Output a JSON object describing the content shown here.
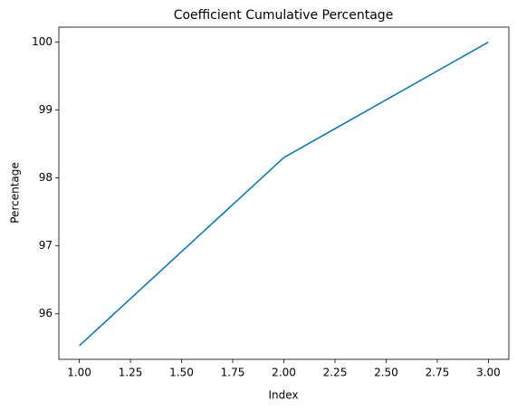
{
  "chart_data": {
    "type": "line",
    "title": "Coefficient Cumulative Percentage",
    "x_label": "Index",
    "y_label": "Percentage",
    "x": [
      1,
      2,
      3
    ],
    "values": [
      95.53,
      98.3,
      100
    ],
    "color": "#0072b2",
    "xlim": [
      0.9,
      3.1
    ],
    "xticks": [
      {
        "value": 1,
        "label": "1.00"
      },
      {
        "value": 1.25,
        "label": "1.25"
      },
      {
        "value": 1.5,
        "label": "1.50"
      },
      {
        "value": 1.75,
        "label": "1.75"
      },
      {
        "value": 2,
        "label": "2.00"
      },
      {
        "value": 2.25,
        "label": "2.25"
      },
      {
        "value": 2.5,
        "label": "2.50"
      },
      {
        "value": 2.75,
        "label": "2.75"
      },
      {
        "value": 3,
        "label": "3.00"
      }
    ],
    "ylim": [
      95.33,
      100.22
    ],
    "yticks": [
      96,
      97,
      98,
      99,
      100
    ],
    "grid": false
  }
}
